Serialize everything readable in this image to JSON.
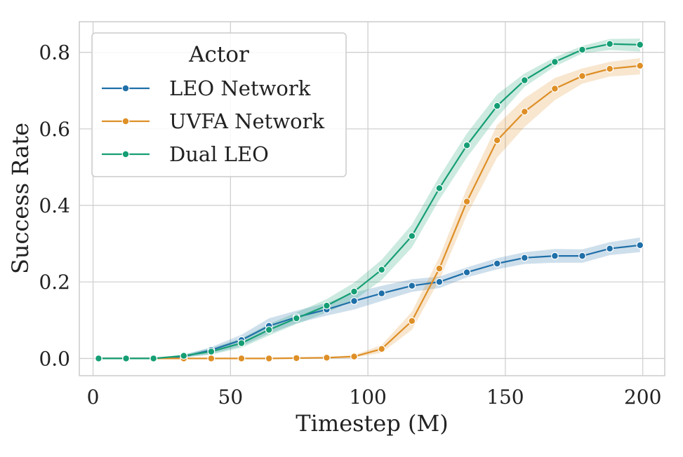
{
  "chart_data": {
    "type": "line",
    "xlabel": "Timestep (M)",
    "ylabel": "Success Rate",
    "xlim": [
      -5,
      208
    ],
    "ylim": [
      -0.045,
      0.88
    ],
    "xticks": [
      0,
      50,
      100,
      150,
      200
    ],
    "xtick_labels": [
      "0",
      "50",
      "100",
      "150",
      "200"
    ],
    "yticks": [
      0.0,
      0.2,
      0.4,
      0.6,
      0.8
    ],
    "ytick_labels": [
      "0.0",
      "0.2",
      "0.4",
      "0.6",
      "0.8"
    ],
    "grid": true,
    "legend": {
      "title": "Actor",
      "placement": "top-left"
    },
    "x": [
      2,
      12,
      22,
      33,
      43,
      54,
      64,
      74,
      85,
      95,
      105,
      116,
      126,
      136,
      147,
      157,
      168,
      178,
      188,
      199
    ],
    "series": [
      {
        "name": "LEO Network",
        "color": "#1f6fa8",
        "values": [
          0.0,
          0.0,
          0.0,
          0.005,
          0.022,
          0.048,
          0.085,
          0.108,
          0.128,
          0.15,
          0.17,
          0.19,
          0.2,
          0.225,
          0.248,
          0.263,
          0.268,
          0.268,
          0.287,
          0.296
        ],
        "lower": [
          0.0,
          0.0,
          0.0,
          0.002,
          0.012,
          0.032,
          0.065,
          0.092,
          0.112,
          0.128,
          0.15,
          0.174,
          0.184,
          0.212,
          0.233,
          0.247,
          0.25,
          0.25,
          0.27,
          0.278
        ],
        "upper": [
          0.0,
          0.0,
          0.0,
          0.009,
          0.03,
          0.062,
          0.105,
          0.125,
          0.145,
          0.172,
          0.19,
          0.207,
          0.214,
          0.238,
          0.262,
          0.278,
          0.286,
          0.285,
          0.304,
          0.316
        ]
      },
      {
        "name": "UVFA Network",
        "color": "#de8f26",
        "values": [
          0.0,
          0.0,
          0.0,
          0.0,
          0.0,
          0.0,
          0.0,
          0.001,
          0.002,
          0.005,
          0.025,
          0.098,
          0.235,
          0.41,
          0.57,
          0.645,
          0.705,
          0.738,
          0.757,
          0.765
        ],
        "lower": [
          0.0,
          0.0,
          0.0,
          0.0,
          0.0,
          0.0,
          0.0,
          0.0,
          0.0,
          0.002,
          0.015,
          0.075,
          0.205,
          0.375,
          0.525,
          0.605,
          0.675,
          0.718,
          0.737,
          0.742
        ],
        "upper": [
          0.0,
          0.0,
          0.0,
          0.0,
          0.0,
          0.0,
          0.0,
          0.002,
          0.004,
          0.009,
          0.035,
          0.122,
          0.265,
          0.445,
          0.61,
          0.68,
          0.733,
          0.758,
          0.775,
          0.785
        ]
      },
      {
        "name": "Dual LEO",
        "color": "#159e74",
        "values": [
          0.0,
          0.0,
          0.0,
          0.007,
          0.018,
          0.04,
          0.075,
          0.105,
          0.138,
          0.175,
          0.232,
          0.32,
          0.445,
          0.557,
          0.66,
          0.727,
          0.775,
          0.807,
          0.822,
          0.82
        ],
        "lower": [
          0.0,
          0.0,
          0.0,
          0.003,
          0.01,
          0.028,
          0.06,
          0.09,
          0.12,
          0.152,
          0.205,
          0.29,
          0.415,
          0.525,
          0.63,
          0.71,
          0.763,
          0.797,
          0.806,
          0.802
        ],
        "upper": [
          0.0,
          0.0,
          0.0,
          0.011,
          0.027,
          0.053,
          0.09,
          0.12,
          0.155,
          0.198,
          0.258,
          0.35,
          0.475,
          0.588,
          0.69,
          0.745,
          0.787,
          0.817,
          0.835,
          0.836
        ]
      }
    ]
  },
  "colors": {
    "grid": "#d0d0d0",
    "frame": "#cccccc",
    "legend_border": "#cccccc"
  }
}
